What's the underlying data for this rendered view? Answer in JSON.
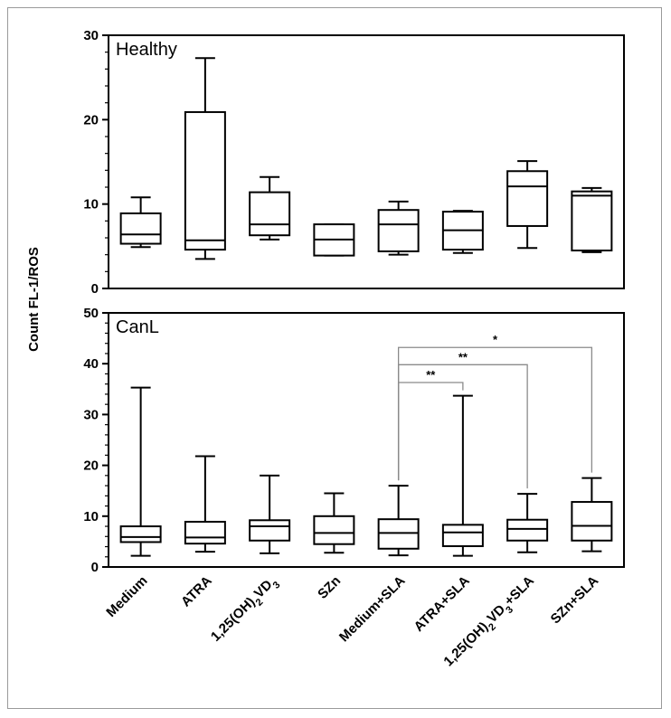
{
  "chart_data": [
    {
      "type": "box",
      "panel_label": "Healthy",
      "ylabel": "Count FL-1/ROS",
      "ylim": [
        0,
        30
      ],
      "yticks": [
        0,
        10,
        20,
        30
      ],
      "categories": [
        "Medium",
        "ATRA",
        "1,25(OH)2VD3",
        "SZn",
        "Medium+SLA",
        "ATRA+SLA",
        "1,25(OH)2VD3+SLA",
        "SZn+SLA"
      ],
      "boxes": [
        {
          "min": 4.9,
          "q1": 5.3,
          "median": 6.4,
          "q3": 8.9,
          "max": 10.8
        },
        {
          "min": 3.5,
          "q1": 4.6,
          "median": 5.7,
          "q3": 20.9,
          "max": 27.3
        },
        {
          "min": 5.8,
          "q1": 6.3,
          "median": 7.6,
          "q3": 11.4,
          "max": 13.2
        },
        {
          "min": 3.9,
          "q1": 3.9,
          "median": 5.8,
          "q3": 7.6,
          "max": 7.6
        },
        {
          "min": 4.0,
          "q1": 4.4,
          "median": 7.6,
          "q3": 9.3,
          "max": 10.3
        },
        {
          "min": 4.2,
          "q1": 4.6,
          "median": 6.9,
          "q3": 9.1,
          "max": 9.2
        },
        {
          "min": 4.8,
          "q1": 7.4,
          "median": 12.1,
          "q3": 13.9,
          "max": 15.1
        },
        {
          "min": 4.3,
          "q1": 4.5,
          "median": 11.0,
          "q3": 11.5,
          "max": 11.9
        }
      ]
    },
    {
      "type": "box",
      "panel_label": "CanL",
      "ylabel": "Count FL-1/ROS",
      "ylim": [
        0,
        50
      ],
      "yticks": [
        0,
        10,
        20,
        30,
        40,
        50
      ],
      "categories": [
        "Medium",
        "ATRA",
        "1,25(OH)2VD3",
        "SZn",
        "Medium+SLA",
        "ATRA+SLA",
        "1,25(OH)2VD3+SLA",
        "SZn+SLA"
      ],
      "boxes": [
        {
          "min": 2.2,
          "q1": 4.9,
          "median": 5.9,
          "q3": 8.0,
          "max": 35.3
        },
        {
          "min": 3.0,
          "q1": 4.6,
          "median": 5.8,
          "q3": 8.9,
          "max": 21.8
        },
        {
          "min": 2.7,
          "q1": 5.2,
          "median": 8.0,
          "q3": 9.2,
          "max": 18.0
        },
        {
          "min": 2.8,
          "q1": 4.5,
          "median": 6.7,
          "q3": 10.0,
          "max": 14.5
        },
        {
          "min": 2.3,
          "q1": 3.6,
          "median": 6.7,
          "q3": 9.4,
          "max": 16.0
        },
        {
          "min": 2.2,
          "q1": 4.1,
          "median": 6.8,
          "q3": 8.3,
          "max": 33.7
        },
        {
          "min": 2.9,
          "q1": 5.2,
          "median": 7.5,
          "q3": 9.3,
          "max": 14.4
        },
        {
          "min": 3.1,
          "q1": 5.2,
          "median": 8.1,
          "q3": 12.8,
          "max": 17.5
        }
      ],
      "significance": [
        {
          "from": "Medium+SLA",
          "to": "ATRA+SLA",
          "label": "**",
          "y": 36.3
        },
        {
          "from": "Medium+SLA",
          "to": "1,25(OH)2VD3+SLA",
          "label": "**",
          "y": 39.8
        },
        {
          "from": "Medium+SLA",
          "to": "SZn+SLA",
          "label": "*",
          "y": 43.2
        }
      ]
    }
  ]
}
